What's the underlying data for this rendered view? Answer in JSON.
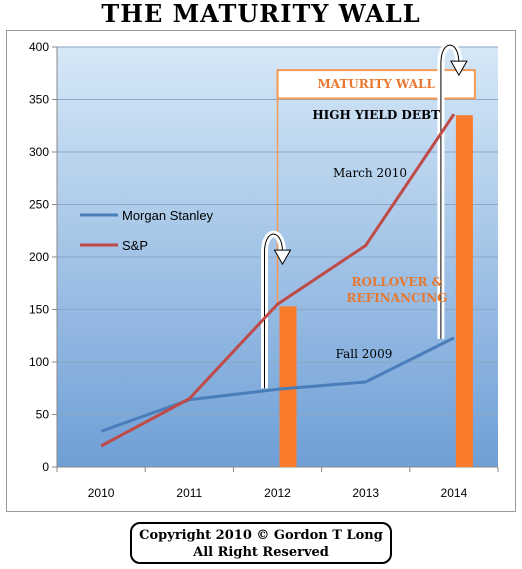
{
  "title": "THE MATURITY WALL",
  "copyright": {
    "line1": "Copyright 2010 © Gordon T Long",
    "line2": "All Right Reserved"
  },
  "chart_data": {
    "type": "line",
    "categories": [
      "2010",
      "2011",
      "2012",
      "2013",
      "2014"
    ],
    "ylim": [
      0,
      400
    ],
    "yticks": [
      "0",
      "50",
      "100",
      "150",
      "200",
      "250",
      "300",
      "350",
      "400"
    ],
    "grid": true,
    "legend_position": "left-middle",
    "series": [
      {
        "name": "Morgan Stanley",
        "color": "#4a7ebb",
        "values": [
          34,
          64,
          74,
          81,
          123
        ]
      },
      {
        "name": "S&P",
        "color": "#be4b48",
        "values": [
          20,
          65,
          155,
          211,
          336
        ]
      }
    ],
    "bars": [
      {
        "category": "2012",
        "value": 153,
        "color": "#fb7b2c"
      },
      {
        "category": "2014",
        "value": 335,
        "color": "#fb7b2c"
      }
    ],
    "annotations": {
      "maturity_wall": "MATURITY WALL",
      "high_yield": "HIGH YIELD DEBT",
      "march": "March 2010",
      "rollover_line1": "ROLLOVER &",
      "rollover_line2": "REFINANCING",
      "fall": "Fall 2009"
    },
    "colors": {
      "plot_top": "#d6e8f7",
      "plot_bottom": "#6f9fd6",
      "accent": "#e87830",
      "bracket": "#f39a55"
    }
  }
}
